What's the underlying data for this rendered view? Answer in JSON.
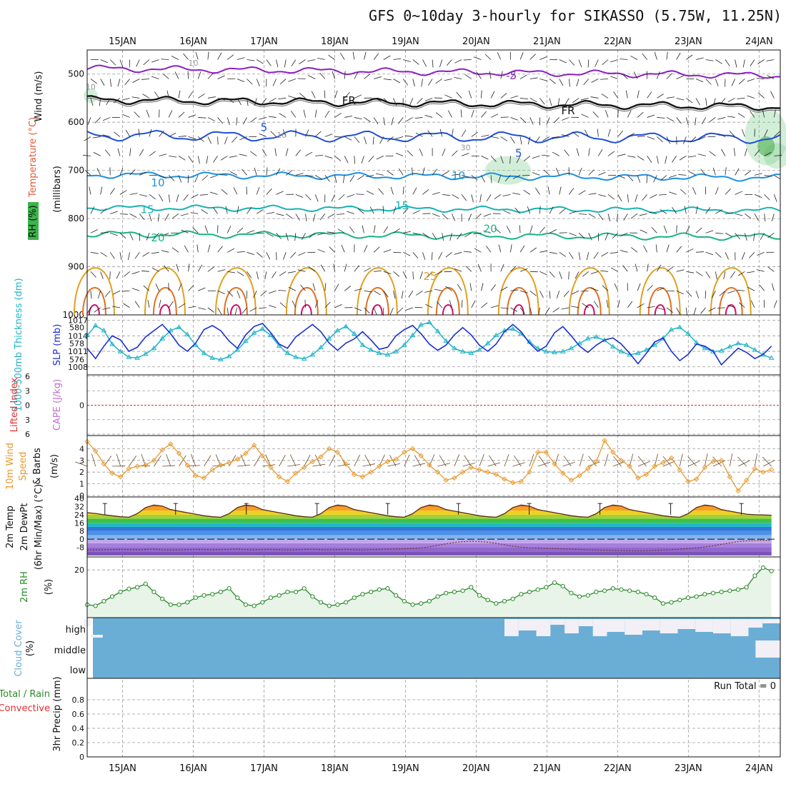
{
  "title": "GFS 0~10day 3-hourly for SIKASSO (5.75W, 11.25N)",
  "colors": {
    "grid": "#9a9a9a",
    "temp_minus5": "#8a1fc0",
    "temp_fr": "#111111",
    "temp_5": "#1f4fd6",
    "temp_10": "#1e90e0",
    "temp_15": "#17b3b3",
    "temp_20": "#19b386",
    "temp_25": "#e0a020",
    "temp_30": "#e07020",
    "temp_35": "#d0106a",
    "rh_fill": "#7fcf8f",
    "thickness": "#20b4c8",
    "slp": "#1a2fd0",
    "lifted_zero": "#e03030",
    "wind_speed": "#e89a30",
    "rh2m": "#2a8a2a",
    "rh2m_fill": "#e8f4e8",
    "cloud": "#6aaed6",
    "cloud_clear": "#f2eff6"
  },
  "chart_data": [
    {
      "type": "line",
      "panel": "upper-air",
      "x_labels": [
        "15JAN",
        "16JAN",
        "17JAN",
        "18JAN",
        "19JAN",
        "20JAN",
        "21JAN",
        "22JAN",
        "23JAN",
        "24JAN"
      ],
      "ylabel_parts": [
        "Wind (m/s)",
        "Temperature (°C)",
        "RH (%)",
        "(millibars)"
      ],
      "y_ticks": [
        "500",
        "600",
        "700",
        "800",
        "900",
        "1000"
      ],
      "ylim": [
        1000,
        450
      ],
      "isotherm_labels": [
        {
          "text": "-5",
          "day": 6.5,
          "p": 503
        },
        {
          "text": "FR",
          "day": 4.2,
          "p": 555
        },
        {
          "text": "FR",
          "day": 7.3,
          "p": 576
        },
        {
          "text": "5",
          "day": 3.0,
          "p": 611
        },
        {
          "text": "5",
          "day": 6.6,
          "p": 664
        },
        {
          "text": "10",
          "day": 1.5,
          "p": 726
        },
        {
          "text": "10",
          "day": 5.75,
          "p": 711
        },
        {
          "text": "15",
          "day": 1.35,
          "p": 781
        },
        {
          "text": "15",
          "day": 4.95,
          "p": 773
        },
        {
          "text": "20",
          "day": 1.5,
          "p": 840
        },
        {
          "text": "20",
          "day": 6.2,
          "p": 821
        },
        {
          "text": "25",
          "day": 5.35,
          "p": 920
        },
        {
          "text": "10",
          "day": 0.55,
          "p": 525
        },
        {
          "text": "10",
          "day": 2.0,
          "p": 475
        },
        {
          "text": "10",
          "day": 3.25,
          "p": 625
        },
        {
          "text": "30",
          "day": 5.85,
          "p": 651
        }
      ]
    },
    {
      "type": "line",
      "panel": "thickness-slp",
      "ylabel_left": "1000-500mb Thickness (dm)",
      "ylabel_right": "SLP (mb)",
      "left_ticks": [
        "580",
        "578",
        "576"
      ],
      "right_ticks": [
        "1017",
        "1014",
        "1011",
        "1008"
      ],
      "thickness_dm": [
        579.0,
        580.2,
        579.6,
        577.9,
        577.0,
        576.3,
        576.2,
        576.7,
        577.4,
        578.6,
        579.6,
        580.0,
        579.1,
        577.8,
        576.8,
        576.2,
        576.0,
        576.4,
        577.2,
        578.3,
        579.3,
        579.8,
        579.0,
        577.7,
        576.8,
        576.3,
        576.1,
        576.6,
        577.5,
        578.6,
        579.6,
        580.1,
        579.2,
        577.8,
        577.2,
        576.8,
        576.6,
        577.0,
        577.8,
        579.0,
        580.3,
        580.6,
        579.5,
        578.3,
        577.4,
        577.0,
        576.8,
        577.2,
        578.0,
        579.0,
        579.6,
        579.8,
        579.2,
        578.2,
        577.4,
        577.0,
        576.9,
        577.0,
        577.4,
        578.0,
        578.6,
        578.8,
        578.4,
        577.6,
        577.0,
        576.6,
        576.8,
        577.2,
        577.8,
        578.6,
        579.7,
        580.0,
        579.2,
        578.1,
        577.4,
        577.0,
        577.1,
        577.6,
        578.0,
        577.8,
        577.2,
        576.6,
        576.2
      ],
      "slp_mb": [
        1011.6,
        1009.6,
        1012.0,
        1014.0,
        1013.2,
        1011.0,
        1011.8,
        1013.8,
        1015.0,
        1016.2,
        1014.4,
        1012.2,
        1011.0,
        1012.6,
        1015.2,
        1016.0,
        1015.0,
        1013.0,
        1011.6,
        1014.2,
        1015.8,
        1016.4,
        1014.6,
        1012.4,
        1011.6,
        1013.8,
        1015.0,
        1016.2,
        1014.8,
        1012.6,
        1011.2,
        1012.6,
        1013.4,
        1014.8,
        1013.2,
        1011.4,
        1011.8,
        1014.0,
        1015.2,
        1016.0,
        1014.4,
        1012.4,
        1011.2,
        1012.2,
        1014.2,
        1015.6,
        1014.2,
        1012.2,
        1011.0,
        1012.4,
        1014.8,
        1016.2,
        1014.8,
        1012.6,
        1011.0,
        1012.0,
        1014.6,
        1015.8,
        1014.0,
        1012.0,
        1010.8,
        1012.2,
        1013.2,
        1013.6,
        1012.4,
        1010.6,
        1008.6,
        1010.6,
        1012.8,
        1013.6,
        1011.0,
        1009.2,
        1010.4,
        1012.4,
        1012.0,
        1011.0,
        1008.4,
        1010.0,
        1011.6,
        1010.8,
        1009.6,
        1010.4,
        1012.0
      ]
    },
    {
      "type": "line",
      "panel": "stability",
      "ylabel_left": "Lifted Index",
      "ylabel_right": "CAPE (J/kg)",
      "left_ticks": [
        "-6",
        "-3",
        "0",
        "3",
        "6"
      ],
      "lifted_index_zero_line": 0
    },
    {
      "type": "line",
      "panel": "wind10m",
      "ylabel": "10m Wind Speed & Barbs (m/s)",
      "y_ticks": [
        "4",
        "3",
        "2",
        "1",
        "0"
      ],
      "ylim": [
        0,
        5
      ],
      "speed_ms": [
        4.6,
        3.8,
        2.7,
        1.9,
        1.6,
        2.3,
        2.5,
        2.6,
        3.0,
        3.9,
        4.4,
        3.6,
        2.6,
        1.7,
        1.5,
        2.2,
        2.6,
        2.8,
        3.1,
        3.6,
        4.3,
        3.4,
        2.4,
        1.6,
        1.2,
        1.9,
        2.4,
        2.9,
        3.3,
        4.0,
        3.7,
        2.7,
        1.8,
        1.6,
        2.0,
        2.5,
        2.9,
        3.1,
        3.7,
        4.0,
        3.4,
        2.6,
        2.0,
        1.3,
        1.5,
        2.0,
        2.4,
        2.2,
        2.0,
        1.8,
        1.4,
        1.1,
        1.2,
        2.0,
        3.7,
        3.7,
        2.7,
        1.9,
        1.3,
        1.7,
        2.3,
        2.9,
        4.7,
        3.7,
        3.0,
        2.5,
        1.5,
        1.8,
        2.5,
        2.8,
        3.2,
        2.2,
        1.2,
        1.4,
        2.4,
        2.9,
        3.0,
        1.6,
        0.4,
        1.3,
        2.3,
        2.0,
        2.2
      ]
    },
    {
      "type": "area",
      "panel": "temp2m",
      "ylabel": "2m Temp 2m DewPt (6hr Min/Max) (°C)",
      "y_ticks": [
        "40",
        "32",
        "24",
        "16",
        "8",
        "0",
        "-8"
      ],
      "ylim": [
        -16,
        40
      ],
      "temp_c": [
        26.0,
        25.2,
        24.0,
        23.0,
        22.0,
        21.5,
        25.0,
        31.0,
        33.5,
        32.5,
        29.0,
        27.5,
        26.0,
        24.5,
        23.0,
        22.0,
        21.5,
        25.0,
        31.0,
        33.5,
        32.5,
        29.0,
        27.5,
        26.0,
        24.5,
        23.0,
        22.0,
        21.5,
        25.0,
        31.0,
        33.5,
        32.5,
        29.0,
        27.5,
        26.0,
        24.5,
        23.0,
        22.0,
        21.5,
        25.0,
        31.0,
        33.5,
        32.5,
        29.0,
        27.5,
        26.0,
        24.5,
        23.0,
        22.0,
        21.5,
        25.0,
        31.0,
        33.5,
        32.5,
        29.0,
        27.5,
        26.0,
        24.5,
        23.0,
        22.0,
        21.5,
        25.0,
        31.0,
        33.5,
        32.5,
        29.0,
        27.5,
        26.0,
        24.5,
        23.0,
        22.0,
        21.5,
        25.0,
        31.0,
        33.5,
        32.5,
        29.0,
        27.5,
        26.0,
        24.5,
        24.0,
        23.8,
        23.5
      ],
      "dewpt_c": [
        -10.5,
        -10.4,
        -10.3,
        -10.2,
        -10.0,
        -10.2,
        -10.4,
        -10.0,
        -9.8,
        -10.3,
        -10.6,
        -10.5,
        -10.2,
        -10.0,
        -10.1,
        -10.3,
        -10.2,
        -10.0,
        -9.7,
        -10.2,
        -10.4,
        -10.1,
        -10.0,
        -10.2,
        -10.5,
        -10.3,
        -10.0,
        -9.9,
        -10.2,
        -10.4,
        -10.1,
        -10.0,
        -10.3,
        -10.5,
        -10.2,
        -10.0,
        -9.8,
        -9.6,
        -9.4,
        -9.0,
        -8.5,
        -7.5,
        -6.0,
        -4.5,
        -3.2,
        -2.5,
        -2.0,
        -2.3,
        -3.0,
        -4.0,
        -5.5,
        -6.8,
        -7.8,
        -8.3,
        -8.6,
        -8.9,
        -9.2,
        -9.5,
        -9.8,
        -10.0,
        -10.3,
        -10.6,
        -10.8,
        -11.0,
        -11.2,
        -11.4,
        -11.5,
        -11.3,
        -11.0,
        -10.7,
        -10.3,
        -9.8,
        -9.2,
        -8.5,
        -7.6,
        -6.4,
        -5.0,
        -3.6,
        -2.4,
        -1.6,
        -1.2,
        -1.0,
        -1.0
      ]
    },
    {
      "type": "line",
      "panel": "rh2m",
      "ylabel": "2m RH (%)",
      "y_ticks": [
        "20"
      ],
      "ylim": [
        0,
        25
      ],
      "rh_pct": [
        5.0,
        4.5,
        6.5,
        8.5,
        10.5,
        11.8,
        12.5,
        14.0,
        10.5,
        7.5,
        5.0,
        5.0,
        6.0,
        8.0,
        9.0,
        9.5,
        10.5,
        12.0,
        8.0,
        5.0,
        4.5,
        6.0,
        8.0,
        9.0,
        10.5,
        10.5,
        12.0,
        8.5,
        6.0,
        4.5,
        5.0,
        6.0,
        8.0,
        9.5,
        10.5,
        11.5,
        12.0,
        9.0,
        6.5,
        5.0,
        5.5,
        6.5,
        8.5,
        10.0,
        10.5,
        11.0,
        12.5,
        9.0,
        7.0,
        5.5,
        6.5,
        7.5,
        9.5,
        10.5,
        11.5,
        12.5,
        14.5,
        13.0,
        10.0,
        8.5,
        9.0,
        10.5,
        11.0,
        12.0,
        11.5,
        11.0,
        10.5,
        9.5,
        8.0,
        5.5,
        6.0,
        7.0,
        8.0,
        8.5,
        9.5,
        10.0,
        10.5,
        11.0,
        11.5,
        12.5,
        17.5,
        21.0,
        19.5
      ]
    },
    {
      "type": "area",
      "panel": "cloud-cover",
      "ylabel": "Cloud Cover (%)",
      "y_ticks": [
        "high",
        "middle",
        "low"
      ]
    },
    {
      "type": "line",
      "panel": "precip",
      "ylabel_parts": [
        "3hr Precip (mm)",
        "Total / Rain",
        "Convective"
      ],
      "y_ticks": [
        "0.8",
        "0.6",
        "0.4",
        "0.2",
        "0"
      ],
      "ylim": [
        0,
        1
      ],
      "run_total": "Run Total = 0",
      "values_mm": []
    }
  ]
}
